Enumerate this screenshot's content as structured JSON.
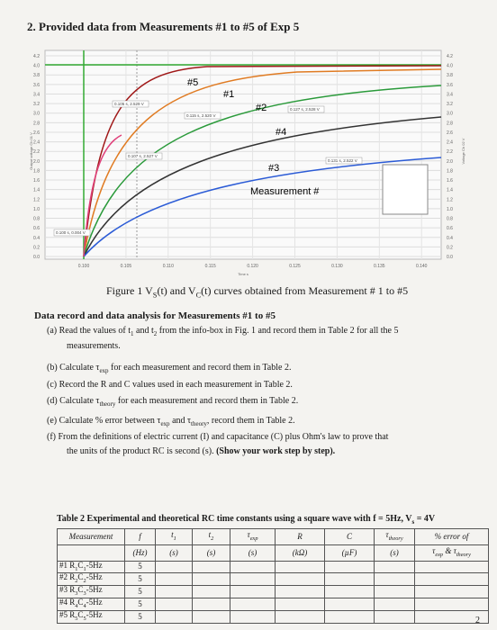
{
  "heading": "2. Provided data from Measurements #1 to #5 of Exp 5",
  "figure": {
    "yticks_left": [
      "4.2",
      "4.0",
      "3.8",
      "3.6",
      "3.4",
      "3.2",
      "3.0",
      "2.8",
      "2.6",
      "2.4",
      "2.2",
      "2.0",
      "1.8",
      "1.6",
      "1.4",
      "1.2",
      "1.0",
      "0.8",
      "0.6",
      "0.4",
      "0.2",
      "0.0"
    ],
    "yticks_right": [
      "4.2",
      "4.0",
      "3.8",
      "3.6",
      "3.4",
      "3.2",
      "3.0",
      "2.8",
      "2.6",
      "2.4",
      "2.2",
      "2.0",
      "1.8",
      "1.6",
      "1.4",
      "1.2",
      "1.0",
      "0.8",
      "0.6",
      "0.4",
      "0.2",
      "0.0"
    ],
    "xticks": [
      "0.100",
      "0.105",
      "0.110",
      "0.115",
      "0.120",
      "0.125",
      "0.130",
      "0.135",
      "0.140"
    ],
    "y_label_left": "Output voltage Ch 01 V",
    "y_label_right": "Voltage Ch 02 V",
    "x_label": "Time s",
    "curve_labels": [
      "#5",
      "#1",
      "#2",
      "#4",
      "#3"
    ],
    "legend_title": "Measurement #",
    "info_boxes": [
      "0.100 s, 0.004 V",
      "0.105 s, 2.529 V",
      "0.115 s, 2.520 V",
      "0.127 s, 2.528 V",
      "0.107 s, 2.527 V",
      "0.131 s, 2.522 V"
    ],
    "caption": [
      "Figure 1 V",
      "S",
      "(t) and V",
      "C",
      "(t) curves obtained from Measurement # 1 to #5"
    ]
  },
  "section_title": "Data record and data analysis for Measurements #1 to #5",
  "items": [
    [
      "(a) Read the values of t",
      "1",
      " and t",
      "2",
      " from the info-box in Fig. 1 and record them in Table 2 for all the 5"
    ],
    [
      "measurements."
    ],
    [
      "(b) Calculate τ",
      "exp",
      " for each measurement and record them in Table 2."
    ],
    [
      "(c) Record the R and C values used in each measurement in Table 2."
    ],
    [
      "(d) Calculate τ",
      "theory",
      " for each measurement and record them in Table 2."
    ],
    [
      "(e) Calculate % error between τ",
      "exp",
      " and τ",
      "theory",
      ", record them in Table 2."
    ],
    [
      "(f) From the definitions of electric current (I) and capacitance (C) plus Ohm's law to prove that"
    ],
    [
      "the units of the product RC is second (s). "
    ]
  ],
  "item_bold": "(Show your work step by step).",
  "table": {
    "title": [
      "Table 2 Experimental and theoretical RC time constants using a square wave with f = 5Hz, V",
      "s",
      " = 4V"
    ],
    "header": [
      [
        "Measurement"
      ],
      [
        "f"
      ],
      [
        "t",
        "1"
      ],
      [
        "t",
        "2"
      ],
      [
        "τ",
        "exp"
      ],
      [
        "R"
      ],
      [
        "C"
      ],
      [
        "τ",
        "theory"
      ],
      [
        "% error of"
      ]
    ],
    "units": [
      [
        ""
      ],
      [
        "(Hz)"
      ],
      [
        "(s)"
      ],
      [
        "(s)"
      ],
      [
        "(s)"
      ],
      [
        "(kΩ)"
      ],
      [
        "(µF)"
      ],
      [
        "(s)"
      ],
      [
        "τ",
        "exp",
        " & τ",
        "theory"
      ]
    ],
    "rows": [
      [
        [
          "#1 R",
          "1",
          "C",
          "1",
          "-5Hz"
        ],
        [
          "5"
        ]
      ],
      [
        [
          "#2 R",
          "2",
          "C",
          "2",
          "-5Hz"
        ],
        [
          "5"
        ]
      ],
      [
        [
          "#3 R",
          "3",
          "C",
          "3",
          "-5Hz"
        ],
        [
          "5"
        ]
      ],
      [
        [
          "#4 R",
          "4",
          "C",
          "4",
          "-5Hz"
        ],
        [
          "5"
        ]
      ],
      [
        [
          "#5 R",
          "5",
          "C",
          "5",
          "-5Hz"
        ],
        [
          "5"
        ]
      ]
    ]
  },
  "page_number": "2"
}
